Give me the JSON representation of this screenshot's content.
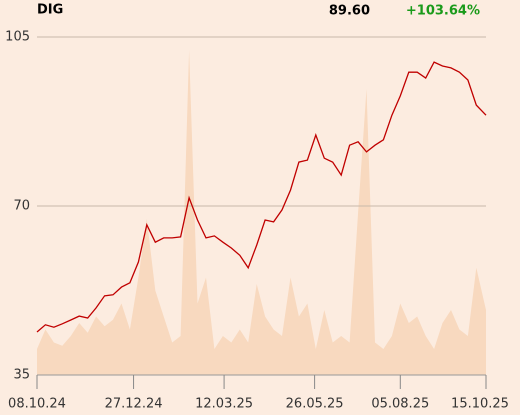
{
  "header": {
    "ticker": "DIG",
    "price": "89.60",
    "change": "+103.64%"
  },
  "chart_data": {
    "type": "line",
    "x": [
      "08.10.24",
      "15.10.24",
      "22.10.24",
      "29.10.24",
      "05.11.24",
      "12.11.24",
      "19.11.24",
      "26.11.24",
      "03.12.24",
      "10.12.24",
      "17.12.24",
      "24.12.24",
      "31.12.24",
      "07.01.25",
      "14.01.25",
      "21.01.25",
      "28.01.25",
      "04.02.25",
      "11.02.25",
      "18.02.25",
      "25.02.25",
      "04.03.25",
      "11.03.25",
      "18.03.25",
      "25.03.25",
      "01.04.25",
      "08.04.25",
      "15.04.25",
      "22.04.25",
      "29.04.25",
      "06.05.25",
      "13.05.25",
      "20.05.25",
      "27.05.25",
      "03.06.25",
      "10.06.25",
      "17.06.25",
      "24.06.25",
      "01.07.25",
      "08.07.25",
      "15.07.25",
      "22.07.25",
      "29.07.25",
      "05.08.25",
      "12.08.25",
      "19.08.25",
      "26.08.25",
      "02.09.25",
      "09.09.25",
      "16.09.25",
      "23.09.25",
      "30.09.25",
      "07.10.25",
      "15.10.25"
    ],
    "series": [
      {
        "color": "#c00000",
        "values": [
          43.9,
          45.4,
          44.9,
          45.6,
          46.4,
          47.2,
          46.8,
          48.9,
          51.4,
          51.6,
          53.2,
          54.1,
          58.4,
          66.1,
          62.5,
          63.4,
          63.4,
          63.6,
          71.7,
          67.1,
          63.4,
          63.8,
          62.5,
          61.3,
          59.8,
          57.2,
          61.9,
          67.1,
          66.7,
          69.2,
          73.3,
          79.1,
          79.5,
          84.7,
          79.9,
          79.1,
          76.4,
          82.6,
          83.3,
          81.2,
          82.6,
          83.7,
          88.8,
          92.8,
          97.7,
          97.7,
          96.5,
          99.8,
          99.0,
          98.6,
          97.7,
          96.1,
          90.9,
          88.8
        ]
      }
    ],
    "volume": {
      "color": "#f8d9bf",
      "ylim": [
        0,
        100
      ],
      "values": [
        8,
        14,
        10,
        9,
        12,
        16,
        13,
        18,
        15,
        17,
        22,
        14,
        30,
        48,
        26,
        18,
        10,
        12,
        100,
        22,
        30,
        8,
        12,
        10,
        14,
        10,
        28,
        18,
        14,
        12,
        30,
        18,
        22,
        8,
        20,
        10,
        12,
        10,
        50,
        88,
        10,
        8,
        12,
        22,
        16,
        18,
        12,
        8,
        16,
        20,
        14,
        12,
        33,
        20
      ]
    },
    "xticks": [
      "08.10.24",
      "27.12.24",
      "12.03.25",
      "26.05.25",
      "05.08.25",
      "15.10.25"
    ],
    "ylim": [
      35,
      105
    ],
    "yticks": [
      35,
      70,
      105
    ],
    "grid": true
  }
}
